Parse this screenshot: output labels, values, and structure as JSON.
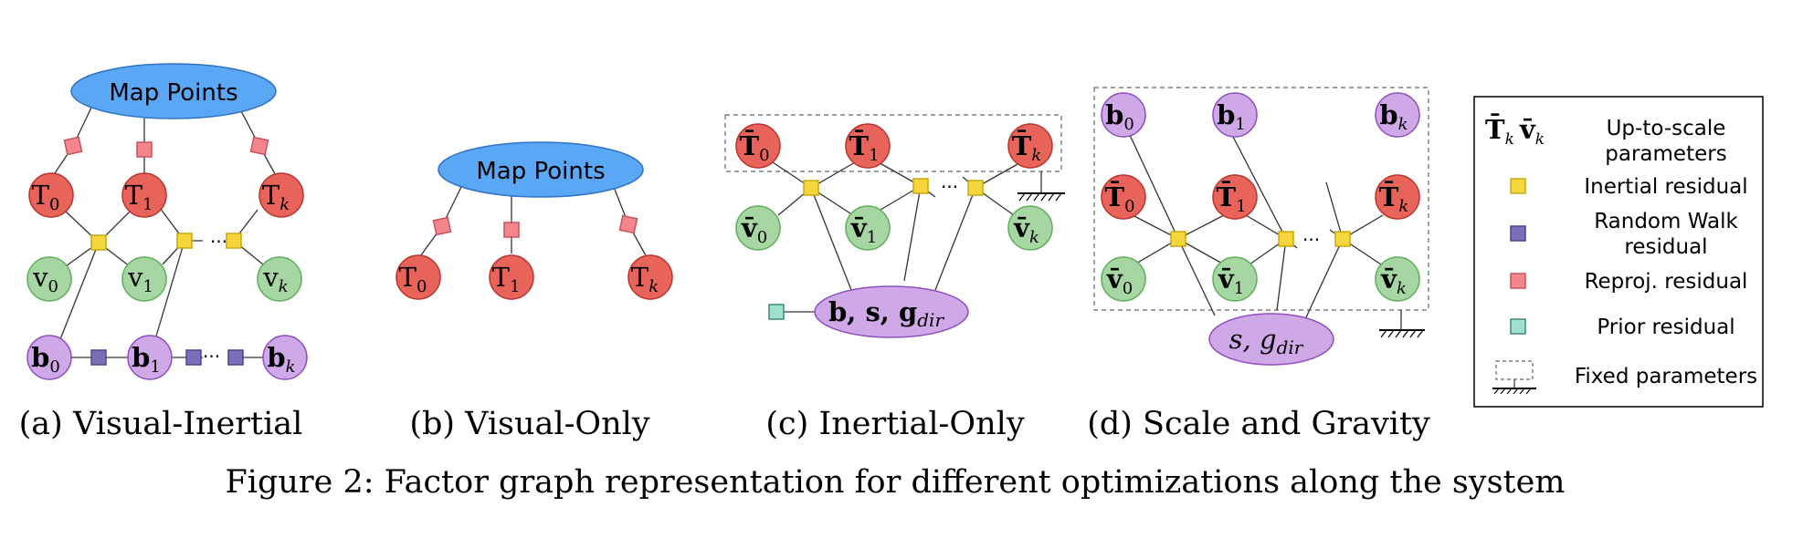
{
  "colors": {
    "map_fill": "#5aa8f5",
    "map_stroke": "#2f72c8",
    "t_fill": "#e8645a",
    "t_stroke": "#b8352c",
    "v_fill": "#a6d6a2",
    "v_stroke": "#5fae5a",
    "b_fill": "#cfa8e8",
    "b_stroke": "#8e4fc0",
    "inertial": "#f5d63d",
    "inertial_stroke": "#c9a80c",
    "randomwalk": "#7b6fb8",
    "randomwalk_stroke": "#4c4390",
    "reproj": "#f3868d",
    "reproj_stroke": "#c9525b",
    "prior": "#9fe0cf",
    "prior_stroke": "#3a8c78"
  },
  "panels": {
    "a": {
      "caption": "(a) Visual-Inertial",
      "map": "Map Points",
      "T": [
        "T",
        "T",
        "T"
      ],
      "T_sub": [
        "0",
        "1",
        "k"
      ],
      "v": [
        "v",
        "v",
        "v"
      ],
      "v_sub": [
        "0",
        "1",
        "k"
      ],
      "b": [
        "b",
        "b",
        "b"
      ],
      "b_sub": [
        "0",
        "1",
        "k"
      ],
      "dots": "···"
    },
    "b": {
      "caption": "(b) Visual-Only",
      "map": "Map Points",
      "T": [
        "T",
        "T",
        "T"
      ],
      "T_sub": [
        "0",
        "1",
        "k"
      ]
    },
    "c": {
      "caption": "(c) Inertial-Only",
      "T": [
        "T̄",
        "T̄",
        "T̄"
      ],
      "T_sub": [
        "0",
        "1",
        "k"
      ],
      "v": [
        "v̄",
        "v̄",
        "v̄"
      ],
      "v_sub": [
        "0",
        "1",
        "k"
      ],
      "big": "b, s, g",
      "big_sub": "dir",
      "dots": "···"
    },
    "d": {
      "caption": "(d) Scale and Gravity",
      "b": [
        "b",
        "b",
        "b"
      ],
      "b_sub": [
        "0",
        "1",
        "k"
      ],
      "T": [
        "T̄",
        "T̄",
        "T̄"
      ],
      "T_sub": [
        "0",
        "1",
        "k"
      ],
      "v": [
        "v̄",
        "v̄",
        "v̄"
      ],
      "v_sub": [
        "0",
        "1",
        "k"
      ],
      "big": "s, g",
      "big_sub": "dir",
      "dots": "···"
    }
  },
  "legend": {
    "params_symbols": "T̄",
    "params_symbol_sub": "k",
    "params_symbols2": "v̄",
    "params_symbol2_sub": "k",
    "params_label_1": "Up-to-scale",
    "params_label_2": "parameters",
    "inertial": "Inertial residual",
    "randomwalk_1": "Random Walk",
    "randomwalk_2": "residual",
    "reproj": "Reproj. residual",
    "prior": "Prior residual",
    "fixed": "Fixed parameters"
  },
  "figure_caption": "Figure 2: Factor graph representation for different optimizations along the system"
}
